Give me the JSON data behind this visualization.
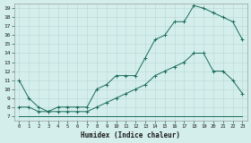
{
  "xlabel": "Humidex (Indice chaleur)",
  "background_color": "#d4eeec",
  "line_color": "#1a6b5a",
  "grid_color": "#b8d8d5",
  "xlim": [
    -0.5,
    23.5
  ],
  "ylim": [
    6.5,
    19.5
  ],
  "xticks": [
    0,
    1,
    2,
    3,
    4,
    5,
    6,
    7,
    8,
    9,
    10,
    11,
    12,
    13,
    14,
    15,
    16,
    17,
    18,
    19,
    20,
    21,
    22,
    23
  ],
  "yticks": [
    7,
    8,
    9,
    10,
    11,
    12,
    13,
    14,
    15,
    16,
    17,
    18,
    19
  ],
  "curve1_x": [
    0,
    1,
    2,
    3,
    4,
    5,
    6,
    7,
    8,
    9,
    10,
    11,
    12,
    13,
    14,
    15,
    16,
    17,
    18,
    19,
    20,
    21,
    22,
    23
  ],
  "curve1_y": [
    11,
    9,
    8,
    7.5,
    8,
    8,
    8,
    8,
    10,
    10.5,
    11.5,
    11.5,
    11.5,
    13.5,
    15.5,
    16,
    17.5,
    17.5,
    19.3,
    19,
    18.5,
    18,
    17.5,
    15.5
  ],
  "curve2_x": [
    0,
    1,
    2,
    3,
    4,
    5,
    6,
    7,
    8,
    9,
    10,
    11,
    12,
    13,
    14,
    15,
    16,
    17,
    18,
    19,
    20,
    21,
    22,
    23
  ],
  "curve2_y": [
    8,
    8,
    7.5,
    7.5,
    7.5,
    7.5,
    7.5,
    7.5,
    8,
    8.5,
    9,
    9.5,
    10,
    10.5,
    11.5,
    12,
    12.5,
    13,
    14,
    14,
    12,
    12,
    11,
    9.5
  ],
  "curve3_x": [
    0,
    1,
    2,
    3,
    4,
    5,
    6,
    7,
    8,
    9,
    10,
    11,
    12,
    13,
    14,
    15,
    16,
    17,
    18,
    19,
    20,
    21,
    22,
    23
  ],
  "curve3_y": [
    7,
    7,
    7,
    7,
    7,
    7,
    7,
    7,
    7,
    7,
    7,
    7,
    7,
    7,
    7,
    7,
    7,
    7,
    7,
    7,
    7,
    7,
    7,
    7
  ]
}
